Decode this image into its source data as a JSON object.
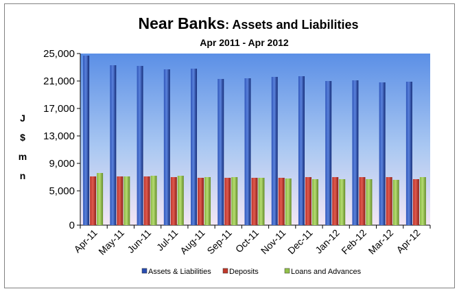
{
  "chart_data": {
    "type": "bar",
    "title_main": "Near Banks",
    "title_rest": ": Assets and Liabilities",
    "subtitle": "Apr 2011 - Apr 2012",
    "ylabel_lines": [
      "J",
      "$",
      "m",
      "n"
    ],
    "categories": [
      "Apr-11",
      "May-11",
      "Jun-11",
      "Jul-11",
      "Aug-11",
      "Sep-11",
      "Oct-11",
      "Nov-11",
      "Dec-11",
      "Jan-12",
      "Feb-12",
      "Mar-12",
      "Apr-12"
    ],
    "series": [
      {
        "name": "Assets & Liabilities",
        "color": "#1f3f9f",
        "values": [
          24700,
          23300,
          23200,
          22700,
          22800,
          21300,
          21400,
          21600,
          21700,
          21000,
          21100,
          20800,
          20900
        ]
      },
      {
        "name": "Deposits",
        "color": "#c0392b",
        "values": [
          7100,
          7100,
          7100,
          7000,
          6900,
          6900,
          6900,
          6900,
          7000,
          7000,
          7000,
          7000,
          6700
        ]
      },
      {
        "name": "Loans and Advances",
        "color": "#92c04a",
        "values": [
          7600,
          7100,
          7200,
          7200,
          7000,
          7000,
          6900,
          6800,
          6700,
          6700,
          6700,
          6600,
          7000
        ]
      }
    ],
    "yticks": [
      0,
      5000,
      9000,
      13000,
      17000,
      21000,
      25000
    ],
    "ytick_labels": [
      "0",
      "5,000",
      "9,000",
      "13,000",
      "17,000",
      "21,000",
      "25,000"
    ],
    "ylim": [
      0,
      25000
    ],
    "grid": false,
    "legend": "bottom"
  }
}
